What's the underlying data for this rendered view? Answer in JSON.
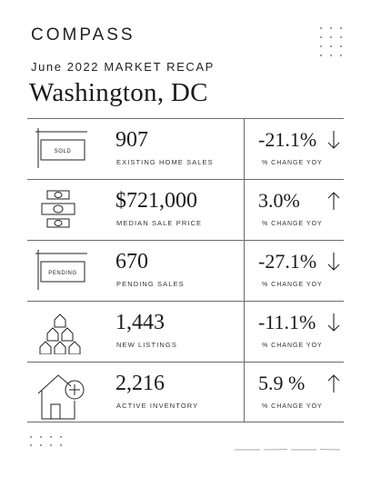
{
  "header": {
    "brand": "COMPASS",
    "recap_title": "June 2022 MARKET RECAP",
    "city": "Washington, DC"
  },
  "stats": [
    {
      "icon": "sold-sign-icon",
      "sign_text": "SOLD",
      "value": "907",
      "label": "EXISTING HOME SALES",
      "change": "-21.1%",
      "direction": "down",
      "change_label": "% CHANGE YOY"
    },
    {
      "icon": "money-stack-icon",
      "value": "$721,000",
      "label": "MEDIAN SALE PRICE",
      "change": "3.0%",
      "direction": "up",
      "change_label": "% CHANGE YOY"
    },
    {
      "icon": "pending-sign-icon",
      "sign_text": "PENDING",
      "value": "670",
      "label": "PENDING SALES",
      "change": "-27.1%",
      "direction": "down",
      "change_label": "% CHANGE YOY"
    },
    {
      "icon": "houses-stack-icon",
      "value": "1,443",
      "label": "NEW LISTINGS",
      "change": "-11.1%",
      "direction": "down",
      "change_label": "% CHANGE YOY"
    },
    {
      "icon": "house-plus-icon",
      "value": "2,216",
      "label": "ACTIVE INVENTORY",
      "change": "5.9 %",
      "direction": "up",
      "change_label": "% CHANGE YOY"
    }
  ],
  "colors": {
    "ink": "#1a1a1a",
    "rule": "#6b6b6b",
    "background": "#ffffff"
  }
}
